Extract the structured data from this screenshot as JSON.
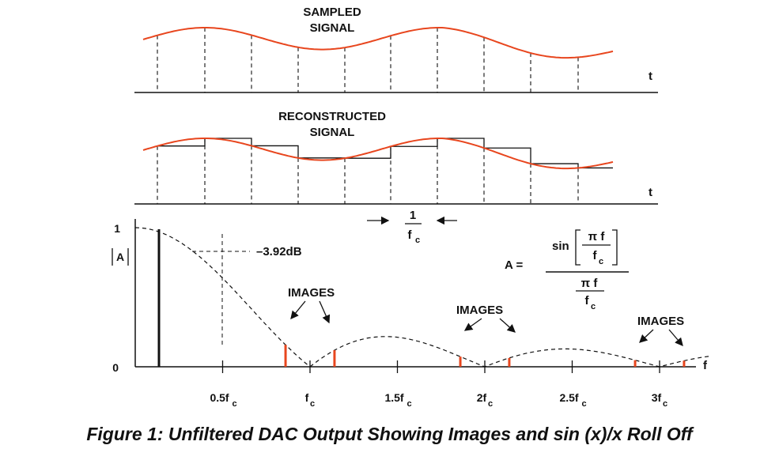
{
  "top_panel": {
    "label_line1": "SAMPLED",
    "label_line2": "SIGNAL",
    "axis": "t"
  },
  "middle_panel": {
    "label_line1": "RECONSTRUCTED",
    "label_line2": "SIGNAL",
    "axis": "t"
  },
  "sample_period": {
    "num": "1",
    "den": "f",
    "den_sub": "c"
  },
  "spectrum": {
    "y_one": "1",
    "y_zero": "0",
    "y_label": "A",
    "x_label": "f",
    "db_label": "–3.92dB",
    "images_label": "IMAGES",
    "ticks": [
      {
        "main": "0.5f",
        "sub": "c"
      },
      {
        "main": "f",
        "sub": "c"
      },
      {
        "main": "1.5f",
        "sub": "c"
      },
      {
        "main": "2f",
        "sub": "c"
      },
      {
        "main": "2.5f",
        "sub": "c"
      },
      {
        "main": "3f",
        "sub": "c"
      }
    ]
  },
  "formula": {
    "lhs": "A =",
    "sin": "sin",
    "pi_f": "π f",
    "f": "f",
    "sub": "c"
  },
  "caption": "Figure 1: Unfiltered DAC Output Showing Images and sin (x)/x Roll Off",
  "colors": {
    "signal": "#e8461e",
    "line": "#111111"
  }
}
